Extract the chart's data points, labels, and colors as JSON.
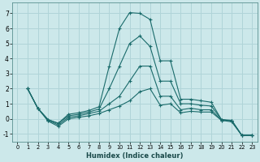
{
  "xlabel": "Humidex (Indice chaleur)",
  "bg_color": "#cce8ea",
  "grid_color": "#b0d4d8",
  "line_color": "#1a6b6b",
  "xlim": [
    -0.5,
    23.5
  ],
  "ylim": [
    -1.5,
    7.7
  ],
  "yticks": [
    -1,
    0,
    1,
    2,
    3,
    4,
    5,
    6,
    7
  ],
  "xticks": [
    0,
    1,
    2,
    3,
    4,
    5,
    6,
    7,
    8,
    9,
    10,
    11,
    12,
    13,
    14,
    15,
    16,
    17,
    18,
    19,
    20,
    21,
    22,
    23
  ],
  "line1_x": [
    1,
    2,
    3,
    4,
    5,
    6,
    7,
    8,
    9,
    10,
    11,
    12,
    13,
    14,
    15,
    16,
    17,
    18,
    19,
    20,
    21,
    22,
    23
  ],
  "line1_y": [
    2.0,
    0.7,
    -0.05,
    -0.3,
    0.3,
    0.4,
    0.55,
    0.8,
    3.5,
    6.0,
    7.05,
    7.0,
    6.6,
    3.85,
    3.85,
    1.3,
    1.3,
    1.2,
    1.1,
    -0.05,
    -0.15,
    -1.1,
    -1.1
  ],
  "line2_x": [
    1,
    2,
    3,
    4,
    5,
    6,
    7,
    8,
    9,
    10,
    11,
    12,
    13,
    14,
    15,
    16,
    17,
    18,
    19,
    20,
    21,
    22,
    23
  ],
  "line2_y": [
    2.0,
    0.7,
    -0.05,
    -0.3,
    0.2,
    0.3,
    0.45,
    0.65,
    2.0,
    3.5,
    5.0,
    5.5,
    4.8,
    2.5,
    2.5,
    1.0,
    1.0,
    0.9,
    0.85,
    -0.05,
    -0.1,
    -1.1,
    -1.1
  ],
  "line3_x": [
    1,
    2,
    3,
    4,
    5,
    6,
    7,
    8,
    9,
    10,
    11,
    12,
    13,
    14,
    15,
    16,
    17,
    18,
    19,
    20,
    21,
    22,
    23
  ],
  "line3_y": [
    2.0,
    0.7,
    -0.1,
    -0.4,
    0.1,
    0.2,
    0.35,
    0.5,
    1.0,
    1.5,
    2.5,
    3.5,
    3.5,
    1.5,
    1.5,
    0.6,
    0.7,
    0.6,
    0.6,
    -0.1,
    -0.1,
    -1.1,
    -1.1
  ],
  "line4_x": [
    1,
    2,
    3,
    4,
    5,
    6,
    7,
    8,
    9,
    10,
    11,
    12,
    13,
    14,
    15,
    16,
    17,
    18,
    19,
    20,
    21,
    22,
    23
  ],
  "line4_y": [
    2.0,
    0.7,
    -0.15,
    -0.5,
    0.0,
    0.1,
    0.2,
    0.35,
    0.6,
    0.85,
    1.2,
    1.8,
    2.0,
    0.9,
    1.0,
    0.4,
    0.5,
    0.45,
    0.45,
    -0.1,
    -0.2,
    -1.1,
    -1.1
  ]
}
